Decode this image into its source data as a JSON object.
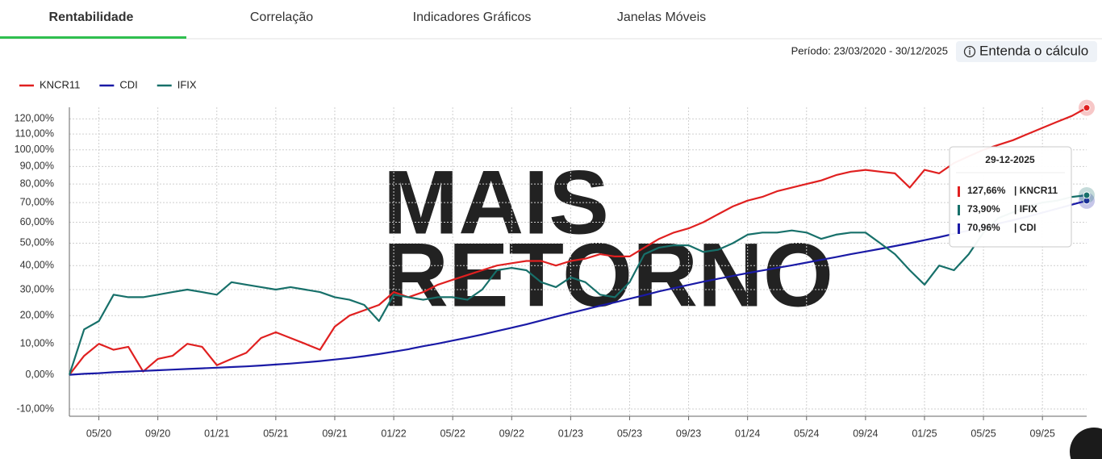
{
  "tabs": [
    "Rentabilidade",
    "Correlação",
    "Indicadores Gráficos",
    "Janelas Móveis"
  ],
  "active_tab": 0,
  "period": "Período: 23/03/2020 - 30/12/2025",
  "help_button": "Entenda o cálculo",
  "watermark": [
    "MAIS",
    "RETORNO"
  ],
  "chart_data": {
    "type": "line",
    "legend": "top-left",
    "grid": true,
    "log_scale": true,
    "categories": [
      null,
      null,
      "05/20",
      null,
      null,
      null,
      "09/20",
      null,
      null,
      null,
      "01/21",
      null,
      null,
      null,
      "05/21",
      null,
      null,
      null,
      "09/21",
      null,
      null,
      null,
      "01/22",
      null,
      null,
      null,
      "05/22",
      null,
      null,
      null,
      "09/22",
      null,
      null,
      null,
      "01/23",
      null,
      null,
      null,
      "05/23",
      null,
      null,
      null,
      "09/23",
      null,
      null,
      null,
      "01/24",
      null,
      null,
      null,
      "05/24",
      null,
      null,
      null,
      "09/24",
      null,
      null,
      null,
      "01/25",
      null,
      null,
      null,
      "05/25",
      null,
      null,
      null,
      "09/25",
      null,
      null,
      null
    ],
    "series": [
      {
        "name": "KNCR11",
        "color": "#e02020",
        "values": [
          0,
          6,
          10,
          8,
          9,
          1,
          5,
          6,
          10,
          9,
          3,
          5,
          7,
          12,
          14,
          12,
          10,
          8,
          16,
          20,
          22,
          24,
          29,
          27,
          29,
          32,
          34,
          36,
          38,
          40,
          41,
          42,
          42,
          40,
          42,
          43,
          45,
          44,
          44,
          48,
          52,
          55,
          57,
          60,
          64,
          68,
          71,
          73,
          76,
          78,
          80,
          82,
          85,
          87,
          88,
          87,
          86,
          78,
          88,
          86,
          92,
          96,
          100,
          103,
          106,
          110,
          114,
          118,
          122,
          127.66
        ]
      },
      {
        "name": "CDI",
        "color": "#1a1aa6",
        "values": [
          0,
          0.3,
          0.5,
          0.8,
          1.0,
          1.2,
          1.4,
          1.6,
          1.8,
          2.0,
          2.2,
          2.4,
          2.6,
          2.9,
          3.2,
          3.5,
          3.9,
          4.3,
          4.8,
          5.3,
          5.9,
          6.6,
          7.4,
          8.2,
          9.2,
          10.1,
          11.1,
          12.1,
          13.2,
          14.4,
          15.6,
          16.8,
          18.2,
          19.6,
          21.0,
          22.3,
          23.7,
          25.0,
          26.4,
          27.8,
          29.3,
          30.6,
          31.9,
          33.2,
          34.4,
          35.6,
          36.8,
          37.9,
          39.0,
          40.1,
          41.3,
          42.5,
          43.7,
          45.0,
          46.2,
          47.4,
          48.7,
          50.0,
          51.4,
          52.8,
          54.4,
          56.0,
          57.6,
          59.3,
          61.0,
          62.8,
          64.8,
          66.8,
          68.9,
          70.96
        ]
      },
      {
        "name": "IFIX",
        "color": "#17706a",
        "values": [
          0,
          15,
          18,
          28,
          27,
          27,
          28,
          29,
          30,
          29,
          28,
          33,
          32,
          31,
          30,
          31,
          30,
          29,
          27,
          26,
          24,
          18,
          28,
          27,
          26,
          27,
          27,
          26,
          30,
          38,
          39,
          38,
          33,
          31,
          35,
          33,
          28,
          27,
          33,
          45,
          48,
          49,
          49,
          46,
          47,
          50,
          54,
          55,
          55,
          56,
          55,
          52,
          54,
          55,
          55,
          50,
          45,
          38,
          32,
          40,
          38,
          45,
          55,
          62,
          65,
          68,
          70,
          71,
          73,
          73.9
        ]
      }
    ],
    "ylim": [
      -12,
      128
    ],
    "yticks": [
      {
        "value": -10,
        "label": "-10,00%"
      },
      {
        "value": 0,
        "label": "0,00%"
      },
      {
        "value": 10,
        "label": "10,00%"
      },
      {
        "value": 20,
        "label": "20,00%"
      },
      {
        "value": 30,
        "label": "30,00%"
      },
      {
        "value": 40,
        "label": "40,00%"
      },
      {
        "value": 50,
        "label": "50,00%"
      },
      {
        "value": 60,
        "label": "60,00%"
      },
      {
        "value": 70,
        "label": "70,00%"
      },
      {
        "value": 80,
        "label": "80,00%"
      },
      {
        "value": 90,
        "label": "90,00%"
      },
      {
        "value": 100,
        "label": "100,00%"
      },
      {
        "value": 110,
        "label": "110,00%"
      },
      {
        "value": 120,
        "label": "120,00%"
      }
    ],
    "tooltip": {
      "date": "29-12-2025",
      "rows": [
        {
          "value": "127,66%",
          "label": "| KNCR11",
          "color": "#e02020"
        },
        {
          "value": "73,90%",
          "label": "| IFIX",
          "color": "#17706a"
        },
        {
          "value": "70,96%",
          "label": "| CDI",
          "color": "#1a1aa6"
        }
      ]
    }
  }
}
